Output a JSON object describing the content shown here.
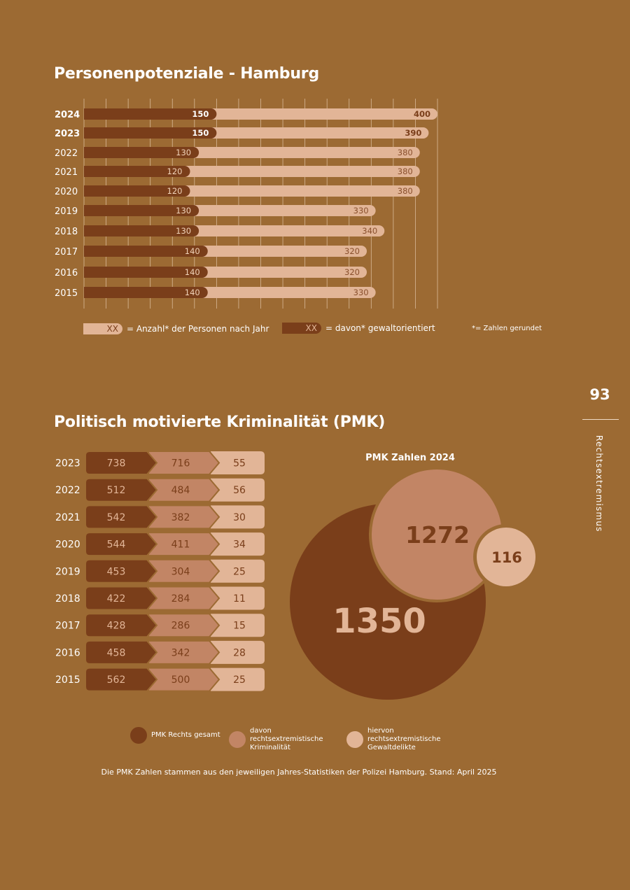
{
  "personenpotenziale": {
    "title": "Personenpotenziale - Hamburg",
    "legend_total_swatch": "XX",
    "legend_total": "= Anzahl* der Personen nach Jahr",
    "legend_violent_swatch": "XX",
    "legend_violent": "= davon* gewaltorientiert",
    "note": "*= Zahlen gerundet"
  },
  "pmk": {
    "title": "Politisch motivierte Kriminalität (PMK)",
    "circle_title": "PMK Zahlen 2024",
    "legend": [
      {
        "label": "PMK Rechts gesamt",
        "color": "#7a3e1a"
      },
      {
        "label": "davon rechtsextremistische Kriminalität",
        "color": "#c28565"
      },
      {
        "label": "hiervon rechtsextremistische Gewaltdelikte",
        "color": "#e2b597"
      }
    ],
    "source": "Die PMK Zahlen stammen aus den jeweiligen Jahres-Statistiken der Polizei Hamburg. Stand: April 2025"
  },
  "sidebar": {
    "page_number": "93",
    "section": "Rechtsextremismus"
  },
  "colors": {
    "background": "#9c6a33",
    "dark": "#7a3e1a",
    "medium": "#c28565",
    "light": "#e2b597"
  },
  "chart_data": [
    {
      "type": "bar",
      "orientation": "horizontal",
      "title": "Personenpotenziale - Hamburg",
      "categories": [
        "2024",
        "2023",
        "2022",
        "2021",
        "2020",
        "2019",
        "2018",
        "2017",
        "2016",
        "2015"
      ],
      "bold_categories": [
        "2024",
        "2023"
      ],
      "xlim": [
        0,
        400
      ],
      "grid": true,
      "series": [
        {
          "name": "Anzahl* der Personen nach Jahr",
          "values": [
            400,
            390,
            380,
            380,
            380,
            330,
            340,
            320,
            320,
            330
          ]
        },
        {
          "name": "davon* gewaltorientiert",
          "values": [
            150,
            150,
            130,
            120,
            120,
            130,
            130,
            140,
            140,
            140
          ]
        }
      ]
    },
    {
      "type": "table",
      "title": "Politisch motivierte Kriminalität (PMK)",
      "columns": [
        "PMK Rechts gesamt",
        "davon rechtsextremistische Kriminalität",
        "hiervon rechtsextremistische Gewaltdelikte"
      ],
      "rows": [
        {
          "year": "2023",
          "values": [
            738,
            716,
            55
          ]
        },
        {
          "year": "2022",
          "values": [
            512,
            484,
            56
          ]
        },
        {
          "year": "2021",
          "values": [
            542,
            382,
            30
          ]
        },
        {
          "year": "2020",
          "values": [
            544,
            411,
            34
          ]
        },
        {
          "year": "2019",
          "values": [
            453,
            304,
            25
          ]
        },
        {
          "year": "2018",
          "values": [
            422,
            284,
            11
          ]
        },
        {
          "year": "2017",
          "values": [
            428,
            286,
            15
          ]
        },
        {
          "year": "2016",
          "values": [
            458,
            342,
            28
          ]
        },
        {
          "year": "2015",
          "values": [
            562,
            500,
            25
          ]
        }
      ]
    },
    {
      "type": "bubble",
      "title": "PMK Zahlen 2024",
      "values": [
        {
          "name": "PMK Rechts gesamt",
          "value": 1350
        },
        {
          "name": "davon rechtsextremistische Kriminalität",
          "value": 1272
        },
        {
          "name": "hiervon rechtsextremistische Gewaltdelikte",
          "value": 116
        }
      ]
    }
  ]
}
